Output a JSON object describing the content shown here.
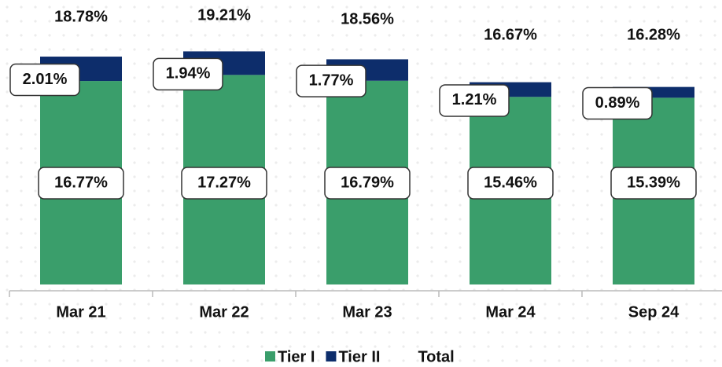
{
  "chart_data": {
    "type": "stacked_bar",
    "categories": [
      "Mar 21",
      "Mar 22",
      "Mar 23",
      "Mar 24",
      "Sep 24"
    ],
    "series": [
      {
        "name": "Tier I",
        "color": "#3a9e6b",
        "values": [
          16.77,
          17.27,
          16.79,
          15.46,
          15.39
        ],
        "value_labels": [
          "16.77%",
          "17.27%",
          "16.79%",
          "15.46%",
          "15.39%"
        ]
      },
      {
        "name": "Tier II",
        "color": "#0d2d6b",
        "values": [
          2.01,
          1.94,
          1.77,
          1.21,
          0.89
        ],
        "value_labels": [
          "2.01%",
          "1.94%",
          "1.77%",
          "1.21%",
          "0.89%"
        ]
      },
      {
        "name": "Total",
        "values": [
          18.78,
          19.21,
          18.56,
          16.67,
          16.28
        ],
        "value_labels": [
          "18.78%",
          "19.21%",
          "18.56%",
          "16.67%",
          "16.28%"
        ]
      }
    ]
  }
}
